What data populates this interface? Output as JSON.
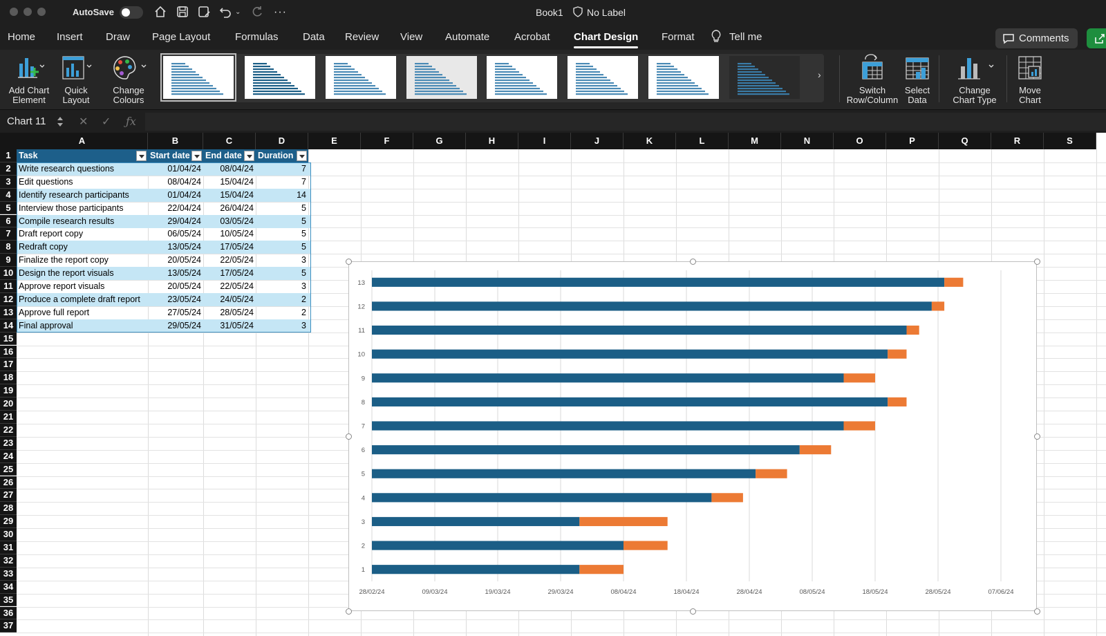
{
  "window": {
    "autosave_label": "AutoSave",
    "title": "Book1",
    "sensitivity_label": "No Label"
  },
  "tabs": [
    "Home",
    "Insert",
    "Draw",
    "Page Layout",
    "Formulas",
    "Data",
    "Review",
    "View",
    "Automate",
    "Acrobat",
    "Chart Design",
    "Format"
  ],
  "active_tab": "Chart Design",
  "tell_me": "Tell me",
  "comments_label": "Comments",
  "ribbon": {
    "add_chart_element": [
      "Add Chart",
      "Element"
    ],
    "quick_layout": [
      "Quick",
      "Layout"
    ],
    "change_colours": [
      "Change",
      "Colours"
    ],
    "switch_row_column": [
      "Switch",
      "Row/Column"
    ],
    "select_data": [
      "Select",
      "Data"
    ],
    "change_chart_type": [
      "Change",
      "Chart Type"
    ],
    "move_chart": [
      "Move",
      "Chart"
    ],
    "gallery_count": 8
  },
  "formula_bar": {
    "name_box": "Chart 11",
    "formula": ""
  },
  "columns": [
    "A",
    "B",
    "C",
    "D",
    "E",
    "F",
    "G",
    "H",
    "I",
    "J",
    "K",
    "L",
    "M",
    "N",
    "O",
    "P",
    "Q",
    "R",
    "S"
  ],
  "row_numbers": [
    "1",
    "2",
    "3",
    "4",
    "5",
    "6",
    "7",
    "8",
    "9",
    "10",
    "11",
    "12",
    "13",
    "14",
    "15",
    "16",
    "17",
    "18",
    "19",
    "20",
    "21",
    "22",
    "23",
    "24",
    "25",
    "26",
    "27",
    "28",
    "29",
    "30",
    "31",
    "32",
    "33",
    "34",
    "35",
    "36",
    "37"
  ],
  "table": {
    "headers": [
      "Task",
      "Start date",
      "End date",
      "Duration"
    ],
    "rows": [
      [
        "Write research questions",
        "01/04/24",
        "08/04/24",
        "7"
      ],
      [
        "Edit questions",
        "08/04/24",
        "15/04/24",
        "7"
      ],
      [
        "Identify research participants",
        "01/04/24",
        "15/04/24",
        "14"
      ],
      [
        "Interview those participants",
        "22/04/24",
        "26/04/24",
        "5"
      ],
      [
        "Compile research results",
        "29/04/24",
        "03/05/24",
        "5"
      ],
      [
        "Draft report copy",
        "06/05/24",
        "10/05/24",
        "5"
      ],
      [
        "Redraft copy",
        "13/05/24",
        "17/05/24",
        "5"
      ],
      [
        "Finalize the report copy",
        "20/05/24",
        "22/05/24",
        "3"
      ],
      [
        "Design the report visuals",
        "13/05/24",
        "17/05/24",
        "5"
      ],
      [
        "Approve report visuals",
        "20/05/24",
        "22/05/24",
        "3"
      ],
      [
        "Produce a complete draft report",
        "23/05/24",
        "24/05/24",
        "2"
      ],
      [
        "Approve full report",
        "27/05/24",
        "28/05/24",
        "2"
      ],
      [
        "Final approval",
        "29/05/24",
        "31/05/24",
        "3"
      ]
    ],
    "band_color": "#c5e6f5",
    "header_color": "#1d5f8a"
  },
  "chart_data": {
    "type": "bar",
    "orientation": "horizontal",
    "stacked": true,
    "categories": [
      "1",
      "2",
      "3",
      "4",
      "5",
      "6",
      "7",
      "8",
      "9",
      "10",
      "11",
      "12",
      "13"
    ],
    "series": [
      {
        "color": "#1b5e86",
        "values": [
          "2024-04-01",
          "2024-04-08",
          "2024-04-01",
          "2024-04-22",
          "2024-04-29",
          "2024-05-06",
          "2024-05-13",
          "2024-05-20",
          "2024-05-13",
          "2024-05-20",
          "2024-05-23",
          "2024-05-27",
          "2024-05-29"
        ]
      },
      {
        "color": "#ec7a34",
        "values": [
          7,
          7,
          14,
          5,
          5,
          5,
          5,
          3,
          5,
          3,
          2,
          2,
          3
        ]
      }
    ],
    "x_tick_labels": [
      "28/02/24",
      "09/03/24",
      "19/03/24",
      "29/03/24",
      "08/04/24",
      "18/04/24",
      "28/04/24",
      "08/05/24",
      "18/05/24",
      "28/05/24",
      "07/06/24"
    ],
    "xlim": [
      "2024-02-28",
      "2024-06-07"
    ],
    "grid": "vertical"
  }
}
